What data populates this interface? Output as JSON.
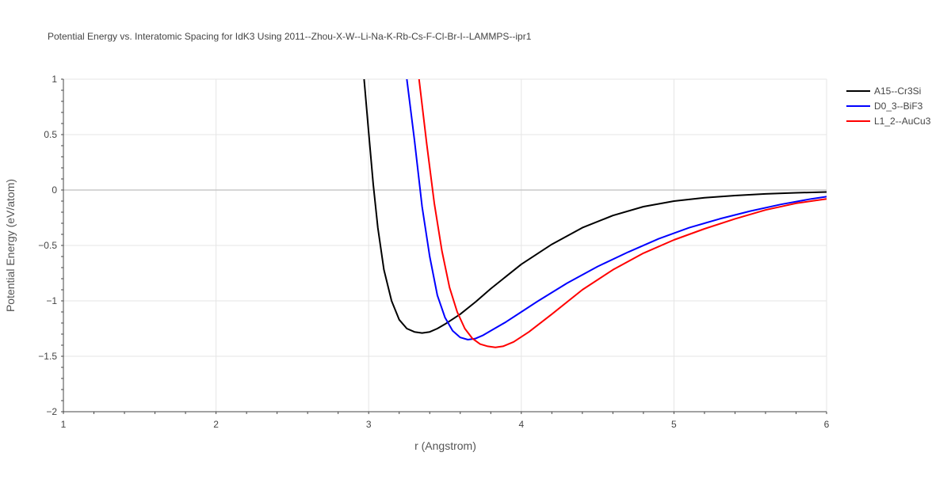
{
  "chart_data": {
    "type": "line",
    "title": "Potential Energy vs. Interatomic Spacing for IdK3 Using 2011--Zhou-X-W--Li-Na-K-Rb-Cs-F-Cl-Br-I--LAMMPS--ipr1",
    "xlabel": "r (Angstrom)",
    "ylabel": "Potential Energy (eV/atom)",
    "xlim": [
      1,
      6
    ],
    "ylim": [
      -2,
      1
    ],
    "x_ticks": [
      1,
      2,
      3,
      4,
      5,
      6
    ],
    "x_tick_labels": [
      "1",
      "2",
      "3",
      "4",
      "5",
      "6"
    ],
    "y_ticks": [
      -2,
      -1.5,
      -1,
      -0.5,
      0,
      0.5,
      1
    ],
    "y_tick_labels": [
      "−2",
      "−1.5",
      "−1",
      "−0.5",
      "0",
      "0.5",
      "1"
    ],
    "grid": true,
    "legend_position": "top-right",
    "series": [
      {
        "name": "A15--Cr3Si",
        "color": "#000000",
        "x": [
          2.97,
          3.0,
          3.03,
          3.06,
          3.1,
          3.15,
          3.2,
          3.25,
          3.3,
          3.35,
          3.4,
          3.45,
          3.5,
          3.6,
          3.7,
          3.8,
          3.9,
          4.0,
          4.1,
          4.2,
          4.4,
          4.6,
          4.8,
          5.0,
          5.2,
          5.4,
          5.6,
          5.8,
          6.0
        ],
        "y": [
          1.0,
          0.52,
          0.05,
          -0.34,
          -0.72,
          -1.0,
          -1.17,
          -1.25,
          -1.28,
          -1.29,
          -1.28,
          -1.25,
          -1.21,
          -1.12,
          -1.01,
          -0.89,
          -0.78,
          -0.67,
          -0.58,
          -0.49,
          -0.34,
          -0.23,
          -0.15,
          -0.1,
          -0.07,
          -0.05,
          -0.035,
          -0.025,
          -0.018
        ]
      },
      {
        "name": "D0_3--BiF3",
        "color": "#0000ff",
        "x": [
          3.25,
          3.3,
          3.35,
          3.4,
          3.45,
          3.5,
          3.55,
          3.6,
          3.65,
          3.7,
          3.75,
          3.8,
          3.9,
          4.0,
          4.1,
          4.3,
          4.5,
          4.7,
          4.9,
          5.1,
          5.3,
          5.5,
          5.7,
          5.9,
          6.0
        ],
        "y": [
          1.0,
          0.45,
          -0.15,
          -0.6,
          -0.95,
          -1.15,
          -1.27,
          -1.33,
          -1.35,
          -1.34,
          -1.31,
          -1.27,
          -1.19,
          -1.1,
          -1.01,
          -0.84,
          -0.69,
          -0.56,
          -0.44,
          -0.34,
          -0.26,
          -0.19,
          -0.13,
          -0.08,
          -0.06
        ]
      },
      {
        "name": "L1_2--AuCu3",
        "color": "#ff0000",
        "x": [
          3.33,
          3.38,
          3.43,
          3.48,
          3.53,
          3.58,
          3.63,
          3.68,
          3.73,
          3.78,
          3.83,
          3.88,
          3.95,
          4.05,
          4.2,
          4.4,
          4.6,
          4.8,
          5.0,
          5.2,
          5.4,
          5.6,
          5.8,
          6.0
        ],
        "y": [
          1.0,
          0.42,
          -0.12,
          -0.55,
          -0.88,
          -1.1,
          -1.25,
          -1.34,
          -1.39,
          -1.41,
          -1.42,
          -1.41,
          -1.37,
          -1.28,
          -1.12,
          -0.9,
          -0.72,
          -0.57,
          -0.45,
          -0.35,
          -0.26,
          -0.18,
          -0.12,
          -0.08
        ]
      }
    ]
  }
}
